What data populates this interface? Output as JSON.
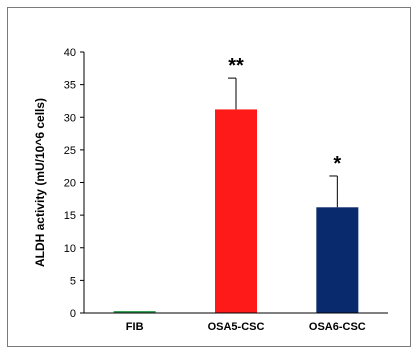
{
  "chart_data": {
    "type": "bar",
    "title": "",
    "xlabel": "",
    "ylabel": "ALDH activity (mU/10^6 cells)",
    "ylim": [
      0,
      40
    ],
    "yticks": [
      0,
      5,
      10,
      15,
      20,
      25,
      30,
      35,
      40
    ],
    "grid": false,
    "legend": "none",
    "categories": [
      "FIB",
      "OSA5-CSC",
      "OSA6-CSC"
    ],
    "values": [
      0.3,
      31.2,
      16.2
    ],
    "error_upper": [
      0.1,
      4.8,
      4.8
    ],
    "significance": [
      "",
      "**",
      "*"
    ],
    "colors": [
      "#2e9e4f",
      "#ff1a1a",
      "#0a2a6e"
    ]
  }
}
